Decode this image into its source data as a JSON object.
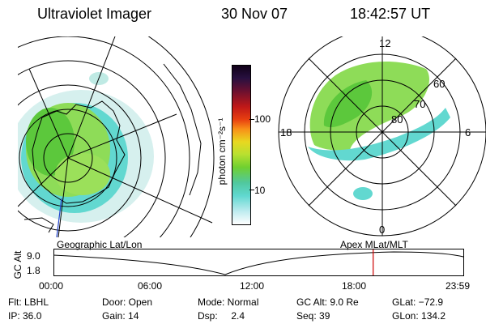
{
  "header": {
    "instrument": "Ultraviolet Imager",
    "date": "30 Nov 07",
    "time": "18:42:57 UT"
  },
  "left_panel": {
    "caption": "Geographic Lat/Lon"
  },
  "right_panel": {
    "caption": "Apex  MLat/MLT",
    "mlt_labels": {
      "top": "12",
      "bottom": "0",
      "left": "18",
      "right": "6"
    },
    "lat_labels": [
      "60",
      "70",
      "80"
    ]
  },
  "colorbar": {
    "unit_label": "photon cm⁻²s⁻¹",
    "ticks": [
      "100",
      "10"
    ]
  },
  "altitude_plot": {
    "y_axis_label": "GC Alt",
    "y_ticks": [
      "9.0",
      "1.8"
    ],
    "x_ticks": [
      "00:00",
      "06:00",
      "12:00",
      "18:00",
      "23:59"
    ],
    "current_time_fraction": 0.78,
    "marker_color": "#cc0000"
  },
  "status": {
    "filter": "Flt: LBHL",
    "ip": "IP: 36.0",
    "door": "Door: Open",
    "gain": "Gain: 14",
    "mode": "Mode: Normal",
    "dsp": "Dsp:     2.4",
    "gc_alt": "GC Alt: 9.0 Re",
    "seq": "Seq: 39",
    "glat": "GLat: −72.9",
    "glon": "GLon: 134.2"
  }
}
